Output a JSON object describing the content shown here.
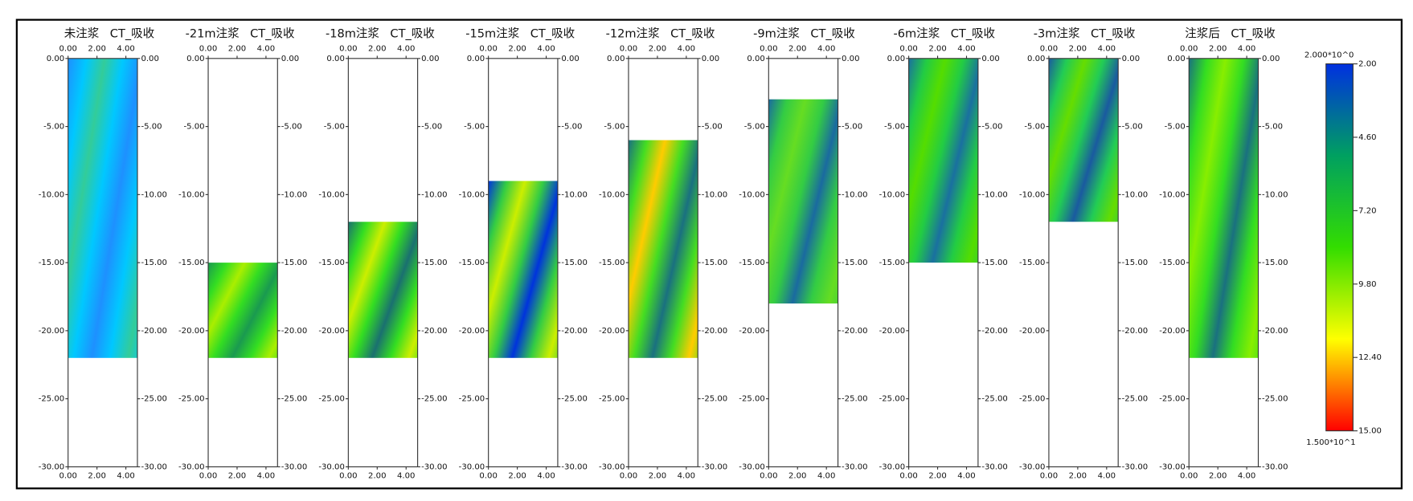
{
  "chart_data": {
    "type": "depth-panels",
    "panels": [
      {
        "name": "未注浆",
        "kind": "CT_吸收",
        "range": [
          0,
          -22
        ],
        "colors": [
          "#1e90ff",
          "#00c8ff",
          "#33cc99"
        ]
      },
      {
        "name": "-21m注浆",
        "kind": "CT_吸收",
        "range": [
          -15,
          -22
        ],
        "colors": [
          "#1a9a50",
          "#33dd22",
          "#aaee00"
        ]
      },
      {
        "name": "-18m注浆",
        "kind": "CT_吸收",
        "range": [
          -12,
          -22
        ],
        "colors": [
          "#1a7070",
          "#33dd22",
          "#ccee00"
        ]
      },
      {
        "name": "-15m注浆",
        "kind": "CT_吸收",
        "range": [
          -9,
          -22
        ],
        "colors": [
          "#0033dd",
          "#33cc44",
          "#ccee00"
        ]
      },
      {
        "name": "-12m注浆",
        "kind": "CT_吸收",
        "range": [
          -6,
          -22
        ],
        "colors": [
          "#1a7080",
          "#44dd22",
          "#ffcc00"
        ]
      },
      {
        "name": "-9m注浆",
        "kind": "CT_吸收",
        "range": [
          -3,
          -18
        ],
        "colors": [
          "#1a6aa0",
          "#33cc44",
          "#66dd22"
        ]
      },
      {
        "name": "-6m注浆",
        "kind": "CT_吸收",
        "range": [
          0,
          -15
        ],
        "colors": [
          "#1a70a0",
          "#22cc44",
          "#55dd00"
        ]
      },
      {
        "name": "-3m注浆",
        "kind": "CT_吸收",
        "range": [
          0,
          -12
        ],
        "colors": [
          "#1a5aa0",
          "#22cc55",
          "#66dd00"
        ]
      },
      {
        "name": "注浆后",
        "kind": "CT_吸收",
        "range": [
          0,
          -22
        ],
        "colors": [
          "#1a7080",
          "#33dd22",
          "#88ee00"
        ]
      }
    ],
    "xlim": [
      0,
      4.8
    ],
    "xticks": [
      {
        "value": 0,
        "label": "0.00"
      },
      {
        "value": 2,
        "label": "2.00"
      },
      {
        "value": 4,
        "label": "4.00"
      }
    ],
    "ylim": [
      0,
      -30
    ],
    "yticks": [
      {
        "value": 0,
        "label": "0.00"
      },
      {
        "value": -5,
        "label": "-5.00"
      },
      {
        "value": -10,
        "label": "-10.00"
      },
      {
        "value": -15,
        "label": "-15.00"
      },
      {
        "value": -20,
        "label": "-20.00"
      },
      {
        "value": -25,
        "label": "-25.00"
      },
      {
        "value": -30,
        "label": "-30.00"
      }
    ],
    "colorbar": {
      "lim": [
        2,
        15
      ],
      "top_label": "2.000*10^0",
      "bottom_label": "1.500*10^1",
      "colors": [
        "#0030e0",
        "#00a060",
        "#33dd00",
        "#ffff00",
        "#ff0000"
      ],
      "ticks": [
        {
          "value": 2,
          "label": "2.00"
        },
        {
          "value": 4.6,
          "label": "4.60"
        },
        {
          "value": 7.2,
          "label": "7.20"
        },
        {
          "value": 9.8,
          "label": "9.80"
        },
        {
          "value": 12.4,
          "label": "12.40"
        },
        {
          "value": 15,
          "label": "15.00"
        }
      ]
    }
  }
}
